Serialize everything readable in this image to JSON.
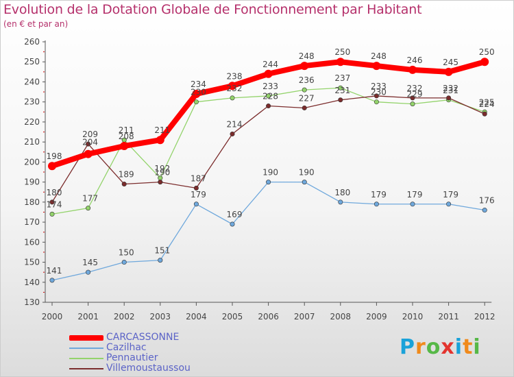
{
  "title": "Evolution de la Dotation Globale de Fonctionnement par Habitant",
  "subtitle": "(en € et par an)",
  "logo": {
    "text": "Proxiti",
    "colors": [
      "#1aa2d9",
      "#f08a1c",
      "#56b847",
      "#e3342f",
      "#1aa2d9",
      "#f08a1c",
      "#56b847"
    ]
  },
  "chart_data": {
    "type": "line",
    "title": "Evolution de la Dotation Globale de Fonctionnement par Habitant",
    "subtitle": "(en € et par an)",
    "x": [
      "2000",
      "2001",
      "2002",
      "2003",
      "2004",
      "2005",
      "2006",
      "2007",
      "2008",
      "2009",
      "2010",
      "2011",
      "2012"
    ],
    "ylim": [
      130,
      260
    ],
    "yticks": [
      130,
      140,
      150,
      160,
      170,
      180,
      190,
      200,
      210,
      220,
      230,
      240,
      250,
      260
    ],
    "grid": false,
    "legend_position": "bottom-left",
    "series": [
      {
        "name": "CARCASSONNE",
        "color": "#ff0000",
        "values": [
          198,
          204,
          208,
          211,
          234,
          238,
          244,
          248,
          250,
          248,
          246,
          245,
          250
        ],
        "labels": [
          "198",
          "",
          "208",
          "211",
          "234",
          "238",
          "244",
          "248",
          "250",
          "248",
          "246",
          "245",
          "250"
        ]
      },
      {
        "name": "Cazilhac",
        "color": "#6fa8dc",
        "values": [
          141,
          145,
          150,
          151,
          179,
          169,
          190,
          190,
          180,
          179,
          179,
          179,
          176
        ],
        "labels": [
          "141",
          "145",
          "150",
          "151",
          "179",
          "169",
          "190",
          "190",
          "180",
          "179",
          "179",
          "179",
          "176"
        ]
      },
      {
        "name": "Pennautier",
        "color": "#93d36b",
        "values": [
          174,
          177,
          211,
          192,
          230,
          232,
          233,
          236,
          237,
          230,
          229,
          231,
          225
        ],
        "labels": [
          "174",
          "177",
          "211",
          "192",
          "230",
          "232",
          "233",
          "236",
          "237",
          "230",
          "229",
          "231",
          "225"
        ]
      },
      {
        "name": "Villemoustaussou",
        "color": "#7b2c2c",
        "values": [
          180,
          209,
          189,
          190,
          187,
          214,
          228,
          227,
          231,
          233,
          232,
          232,
          224
        ],
        "labels": [
          "180",
          "209",
          "189",
          "190",
          "187",
          "214",
          "228",
          "227",
          "231",
          "233",
          "232",
          "232",
          "224"
        ]
      }
    ],
    "extra_labels": [
      "204"
    ]
  }
}
